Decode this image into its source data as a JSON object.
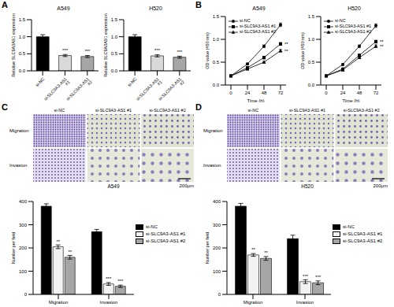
{
  "chart_data": [
    {
      "panel": "A",
      "type": "bar",
      "title": "A549",
      "y_label": "Relative SLC9A3AS1 expression",
      "categories": [
        "si-NC",
        "si-SLC9A3-AS1 #1",
        "si-SLC9A3-AS1 #2"
      ],
      "values": [
        1.0,
        0.45,
        0.42
      ],
      "errors": [
        0.06,
        0.03,
        0.03
      ],
      "annotations": [
        null,
        "***",
        "***"
      ],
      "colors": [
        "#000000",
        "#d9d9d9",
        "#a6a6a6"
      ],
      "ylim": [
        0,
        1.5
      ],
      "yticks": [
        {
          "value": 0,
          "label": "0.0"
        },
        0.5,
        {
          "value": 1,
          "label": "1.0"
        },
        1.5
      ]
    },
    {
      "type": "bar",
      "title": "H520",
      "y_label": "Relative SLC9A3AS1 expression",
      "categories": [
        "si-NC",
        "si-SLC9A3-AS1 #1",
        "si-SLC9A3-AS1 #2"
      ],
      "values": [
        1.0,
        0.44,
        0.4
      ],
      "errors": [
        0.06,
        0.03,
        0.03
      ],
      "annotations": [
        null,
        "***",
        "***"
      ],
      "colors": [
        "#000000",
        "#d9d9d9",
        "#a6a6a6"
      ],
      "ylim": [
        0,
        1.5
      ],
      "yticks": [
        {
          "value": 0,
          "label": "0.0"
        },
        0.5,
        {
          "value": 1,
          "label": "1.0"
        },
        1.5
      ]
    },
    {
      "panel": "B",
      "type": "line",
      "title": "A549",
      "x_label": "Time (h)",
      "y_label": "OD value (450 nm)",
      "x": [
        0,
        24,
        48,
        72
      ],
      "xlim": [
        -8,
        80
      ],
      "xticks": [
        0,
        24,
        48,
        72
      ],
      "ylim": [
        0,
        1.5
      ],
      "yticks": [
        {
          "value": 0,
          "label": "0.0"
        },
        0.5,
        {
          "value": 1,
          "label": "1.0"
        },
        1.5
      ],
      "legend": "upper left",
      "series": [
        {
          "name": "si-NC",
          "color": "#000000",
          "marker": "circle",
          "values": [
            0.2,
            0.46,
            0.85,
            1.32
          ],
          "errors": [
            0.01,
            0.02,
            0.03,
            0.04
          ]
        },
        {
          "name": "si-SLC9A3-AS1 #1",
          "color": "#000000",
          "marker": "square",
          "values": [
            0.2,
            0.38,
            0.6,
            0.9
          ],
          "errors": [
            0.01,
            0.02,
            0.03,
            0.03
          ],
          "annotation": "**"
        },
        {
          "name": "si-SLC9A3-AS1 #2",
          "color": "#000000",
          "marker": "triangle",
          "values": [
            0.2,
            0.35,
            0.5,
            0.75
          ],
          "errors": [
            0.01,
            0.02,
            0.02,
            0.03
          ],
          "annotation": "**"
        }
      ]
    },
    {
      "type": "line",
      "title": "H520",
      "x_label": "Time (h)",
      "y_label": "OD value (450 nm)",
      "x": [
        0,
        24,
        48,
        72
      ],
      "xlim": [
        -8,
        80
      ],
      "xticks": [
        0,
        24,
        48,
        72
      ],
      "ylim": [
        0,
        1.5
      ],
      "yticks": [
        {
          "value": 0,
          "label": "0.0"
        },
        0.5,
        {
          "value": 1,
          "label": "1.0"
        },
        1.5
      ],
      "legend": "upper left",
      "series": [
        {
          "name": "si-NC",
          "color": "#000000",
          "marker": "circle",
          "values": [
            0.2,
            0.45,
            0.85,
            1.3
          ],
          "errors": [
            0.01,
            0.02,
            0.03,
            0.04
          ]
        },
        {
          "name": "si-SLC9A3-AS1 #1",
          "color": "#000000",
          "marker": "square",
          "values": [
            0.2,
            0.35,
            0.65,
            0.95
          ],
          "errors": [
            0.01,
            0.02,
            0.03,
            0.03
          ],
          "annotation": "**"
        },
        {
          "name": "si-SLC9A3-AS1 #2",
          "color": "#000000",
          "marker": "triangle",
          "values": [
            0.2,
            0.33,
            0.6,
            0.85
          ],
          "errors": [
            0.01,
            0.02,
            0.02,
            0.03
          ],
          "annotation": "**"
        }
      ]
    },
    {
      "type": "bar",
      "y_label": "Number per field",
      "categories": [
        "Migration",
        "Invasion"
      ],
      "ylim": [
        0,
        400
      ],
      "yticks": [
        0,
        100,
        200,
        300,
        400
      ],
      "legend": "right",
      "series": [
        {
          "name": "si-NC",
          "color": "#000000",
          "values": [
            380,
            270
          ],
          "errors": [
            10,
            10
          ],
          "annotations": [
            null,
            null
          ]
        },
        {
          "name": "si-SLC9A3-AS1 #1",
          "color": "#f2f2f2",
          "values": [
            205,
            45
          ],
          "errors": [
            8,
            6
          ],
          "annotations": [
            "**",
            "***"
          ]
        },
        {
          "name": "si-SLC9A3-AS1 #2",
          "color": "#a6a6a6",
          "values": [
            160,
            35
          ],
          "errors": [
            8,
            5
          ],
          "annotations": [
            "**",
            "***"
          ]
        }
      ]
    },
    {
      "type": "bar",
      "y_label": "Number per field",
      "categories": [
        "Migration",
        "Invasion"
      ],
      "ylim": [
        0,
        400
      ],
      "yticks": [
        0,
        100,
        200,
        300,
        400
      ],
      "legend": "right",
      "series": [
        {
          "name": "si-NC",
          "color": "#000000",
          "values": [
            380,
            240
          ],
          "errors": [
            12,
            15
          ],
          "annotations": [
            null,
            null
          ]
        },
        {
          "name": "si-SLC9A3-AS1 #1",
          "color": "#f2f2f2",
          "values": [
            170,
            55
          ],
          "errors": [
            6,
            8
          ],
          "annotations": [
            "**",
            "***"
          ]
        },
        {
          "name": "si-SLC9A3-AS1 #2",
          "color": "#a6a6a6",
          "values": [
            155,
            50
          ],
          "errors": [
            8,
            8
          ],
          "annotations": [
            "**",
            "***"
          ]
        }
      ]
    }
  ],
  "images": [
    {
      "panel": "C",
      "label": "A549",
      "columns": [
        "si-NC",
        "si-SLC9A3-AS1 #1",
        "si-SLC9A3-AS1 #2"
      ],
      "rows": [
        "Migration",
        "Invasion"
      ],
      "scale_bar": "200μm"
    },
    {
      "panel": "D",
      "label": "H520",
      "columns": [
        "si-NC",
        "si-SLC9A3-AS1 #1",
        "si-SLC9A3-AS1 #2"
      ],
      "rows": [
        "Migration",
        "Invasion"
      ],
      "scale_bar": "200μm"
    }
  ]
}
